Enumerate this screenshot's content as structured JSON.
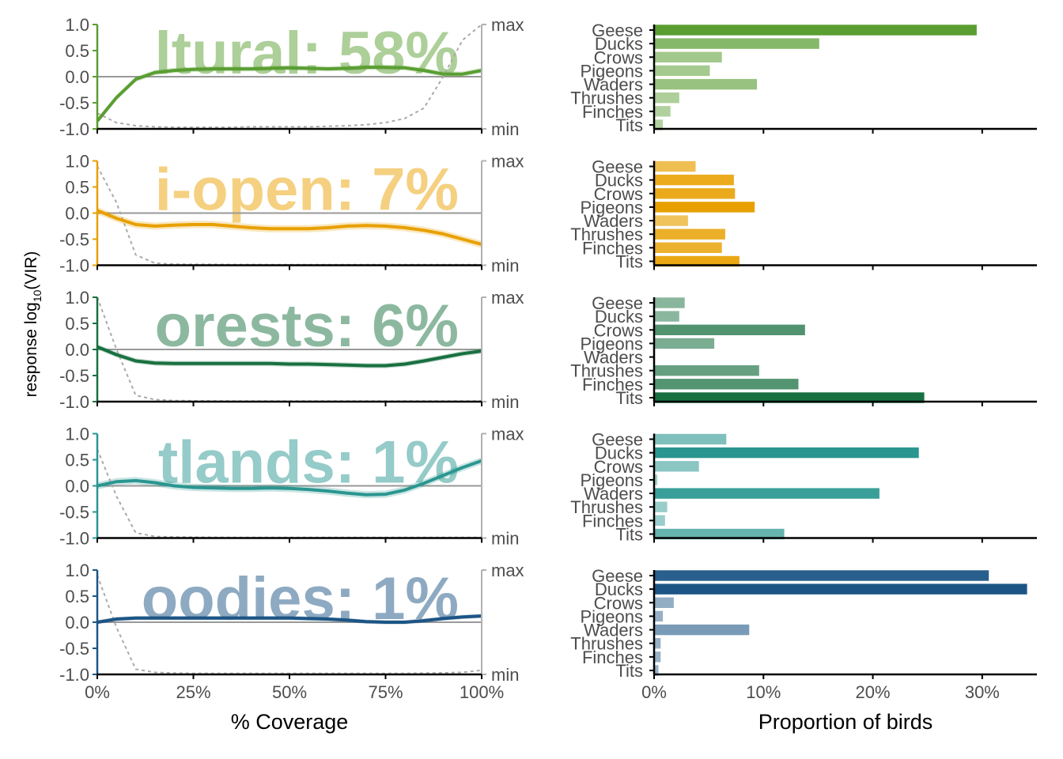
{
  "colors": {
    "Agricultural": "#5a9e32",
    "Semi-open": "#e8a000",
    "Forests": "#187040",
    "Wetlands": "#2a9690",
    "Water bodies": "#1c5585",
    "zero_line": "#999999",
    "cover_curve": "#aaaaaa"
  },
  "y_axis_title": "response log",
  "y_axis_sub": "10",
  "y_axis_suffix": "(VIR)",
  "left_x_title": "% Coverage",
  "right_x_title": "Proportion of birds",
  "right_axis_labels": {
    "max": "max",
    "min": "min"
  },
  "chart_data": [
    {
      "type": "line",
      "panel": "Agricultural",
      "label": "ltural: 58%",
      "x": [
        0,
        5,
        10,
        15,
        20,
        25,
        30,
        35,
        40,
        45,
        50,
        55,
        60,
        65,
        70,
        75,
        80,
        85,
        90,
        95,
        100
      ],
      "y": [
        -0.85,
        -0.4,
        -0.05,
        0.08,
        0.12,
        0.14,
        0.15,
        0.15,
        0.15,
        0.16,
        0.17,
        0.16,
        0.15,
        0.16,
        0.18,
        0.18,
        0.17,
        0.12,
        0.05,
        0.05,
        0.12
      ],
      "band": 0.05,
      "cover": [
        0.15,
        0.06,
        0.03,
        0.02,
        0.015,
        0.015,
        0.015,
        0.015,
        0.02,
        0.02,
        0.02,
        0.02,
        0.025,
        0.03,
        0.04,
        0.06,
        0.1,
        0.2,
        0.5,
        0.85,
        1.0
      ],
      "xlim": [
        0,
        100
      ],
      "ylim": [
        -1,
        1
      ]
    },
    {
      "type": "line",
      "panel": "Semi-open",
      "label": "i-open: 7%",
      "x": [
        0,
        5,
        10,
        15,
        20,
        25,
        30,
        35,
        40,
        45,
        50,
        55,
        60,
        65,
        70,
        75,
        80,
        85,
        90,
        95,
        100
      ],
      "y": [
        0.05,
        -0.1,
        -0.22,
        -0.25,
        -0.23,
        -0.22,
        -0.22,
        -0.25,
        -0.28,
        -0.3,
        -0.3,
        -0.3,
        -0.28,
        -0.25,
        -0.24,
        -0.25,
        -0.28,
        -0.33,
        -0.4,
        -0.5,
        -0.6
      ],
      "band": 0.07,
      "cover": [
        0.95,
        0.6,
        0.1,
        0.02,
        0.01,
        0.008,
        0.008,
        0.007,
        0.007,
        0.006,
        0.006,
        0.006,
        0.006,
        0.006,
        0.006,
        0.006,
        0.006,
        0.006,
        0.006,
        0.006,
        0.006
      ],
      "xlim": [
        0,
        100
      ],
      "ylim": [
        -1,
        1
      ]
    },
    {
      "type": "line",
      "panel": "Forests",
      "label": "orests: 6%",
      "x": [
        0,
        5,
        10,
        15,
        20,
        25,
        30,
        35,
        40,
        45,
        50,
        55,
        60,
        65,
        70,
        75,
        80,
        85,
        90,
        95,
        100
      ],
      "y": [
        0.05,
        -0.1,
        -0.22,
        -0.26,
        -0.27,
        -0.27,
        -0.27,
        -0.27,
        -0.27,
        -0.27,
        -0.28,
        -0.28,
        -0.29,
        -0.3,
        -0.31,
        -0.31,
        -0.28,
        -0.22,
        -0.15,
        -0.08,
        -0.03
      ],
      "band": 0.05,
      "cover": [
        1.0,
        0.5,
        0.06,
        0.02,
        0.01,
        0.008,
        0.007,
        0.006,
        0.005,
        0.005,
        0.005,
        0.005,
        0.005,
        0.005,
        0.005,
        0.005,
        0.005,
        0.005,
        0.005,
        0.005,
        0.005
      ],
      "xlim": [
        0,
        100
      ],
      "ylim": [
        -1,
        1
      ]
    },
    {
      "type": "line",
      "panel": "Wetlands",
      "label": "tlands: 1%",
      "x": [
        0,
        5,
        10,
        15,
        20,
        25,
        30,
        35,
        40,
        45,
        50,
        55,
        60,
        65,
        70,
        75,
        80,
        85,
        90,
        95,
        100
      ],
      "y": [
        0.0,
        0.08,
        0.1,
        0.06,
        0.0,
        -0.03,
        -0.04,
        -0.05,
        -0.05,
        -0.04,
        -0.05,
        -0.07,
        -0.1,
        -0.14,
        -0.17,
        -0.16,
        -0.08,
        0.05,
        0.2,
        0.35,
        0.48
      ],
      "band": 0.07,
      "cover": [
        0.85,
        0.4,
        0.05,
        0.015,
        0.01,
        0.008,
        0.007,
        0.006,
        0.006,
        0.006,
        0.006,
        0.006,
        0.006,
        0.006,
        0.006,
        0.006,
        0.006,
        0.006,
        0.006,
        0.006,
        0.006
      ],
      "xlim": [
        0,
        100
      ],
      "ylim": [
        -1,
        1
      ]
    },
    {
      "type": "line",
      "panel": "Water bodies",
      "label": "oodies: 1%",
      "x": [
        0,
        5,
        10,
        15,
        20,
        25,
        30,
        35,
        40,
        45,
        50,
        55,
        60,
        65,
        70,
        75,
        80,
        85,
        90,
        95,
        100
      ],
      "y": [
        0.0,
        0.06,
        0.08,
        0.08,
        0.08,
        0.08,
        0.08,
        0.08,
        0.08,
        0.08,
        0.08,
        0.07,
        0.06,
        0.04,
        0.01,
        0.0,
        0.0,
        0.03,
        0.07,
        0.1,
        0.12
      ],
      "band": 0.04,
      "cover": [
        0.95,
        0.45,
        0.05,
        0.02,
        0.012,
        0.01,
        0.01,
        0.01,
        0.01,
        0.01,
        0.01,
        0.01,
        0.01,
        0.01,
        0.01,
        0.01,
        0.01,
        0.012,
        0.015,
        0.02,
        0.04
      ],
      "xlim": [
        0,
        100
      ],
      "ylim": [
        -1,
        1
      ]
    },
    {
      "type": "bar",
      "panel": "Agricultural",
      "orientation": "horizontal",
      "categories": [
        "Geese",
        "Ducks",
        "Crows",
        "Pigeons",
        "Waders",
        "Thrushes",
        "Finches",
        "Tits"
      ],
      "values": [
        29.5,
        15.1,
        6.2,
        5.1,
        9.4,
        2.3,
        1.5,
        0.8
      ],
      "xlim": [
        0,
        35
      ]
    },
    {
      "type": "bar",
      "panel": "Semi-open",
      "orientation": "horizontal",
      "categories": [
        "Geese",
        "Ducks",
        "Crows",
        "Pigeons",
        "Waders",
        "Thrushes",
        "Finches",
        "Tits"
      ],
      "values": [
        3.8,
        7.3,
        7.4,
        9.2,
        3.1,
        6.5,
        6.2,
        7.8
      ],
      "xlim": [
        0,
        35
      ]
    },
    {
      "type": "bar",
      "panel": "Forests",
      "orientation": "horizontal",
      "categories": [
        "Geese",
        "Ducks",
        "Crows",
        "Pigeons",
        "Waders",
        "Thrushes",
        "Finches",
        "Tits"
      ],
      "values": [
        2.8,
        2.3,
        13.8,
        5.5,
        0.0,
        9.6,
        13.2,
        24.7
      ],
      "xlim": [
        0,
        35
      ]
    },
    {
      "type": "bar",
      "panel": "Wetlands",
      "orientation": "horizontal",
      "categories": [
        "Geese",
        "Ducks",
        "Crows",
        "Pigeons",
        "Waders",
        "Thrushes",
        "Finches",
        "Tits"
      ],
      "values": [
        6.6,
        24.2,
        4.1,
        0.3,
        20.6,
        1.2,
        1.0,
        11.9
      ],
      "xlim": [
        0,
        35
      ]
    },
    {
      "type": "bar",
      "panel": "Water bodies",
      "orientation": "horizontal",
      "categories": [
        "Geese",
        "Ducks",
        "Crows",
        "Pigeons",
        "Waders",
        "Thrushes",
        "Finches",
        "Tits"
      ],
      "values": [
        30.6,
        34.1,
        1.8,
        0.8,
        8.7,
        0.6,
        0.6,
        0.4
      ],
      "xlim": [
        0,
        35
      ]
    }
  ],
  "left_x_ticks": [
    "0%",
    "25%",
    "50%",
    "75%",
    "100%"
  ],
  "left_y_ticks": [
    "1.0",
    "0.5",
    "0.0",
    "-0.5",
    "-1.0"
  ],
  "right_x_ticks": [
    "0%",
    "10%",
    "20%",
    "30%"
  ]
}
